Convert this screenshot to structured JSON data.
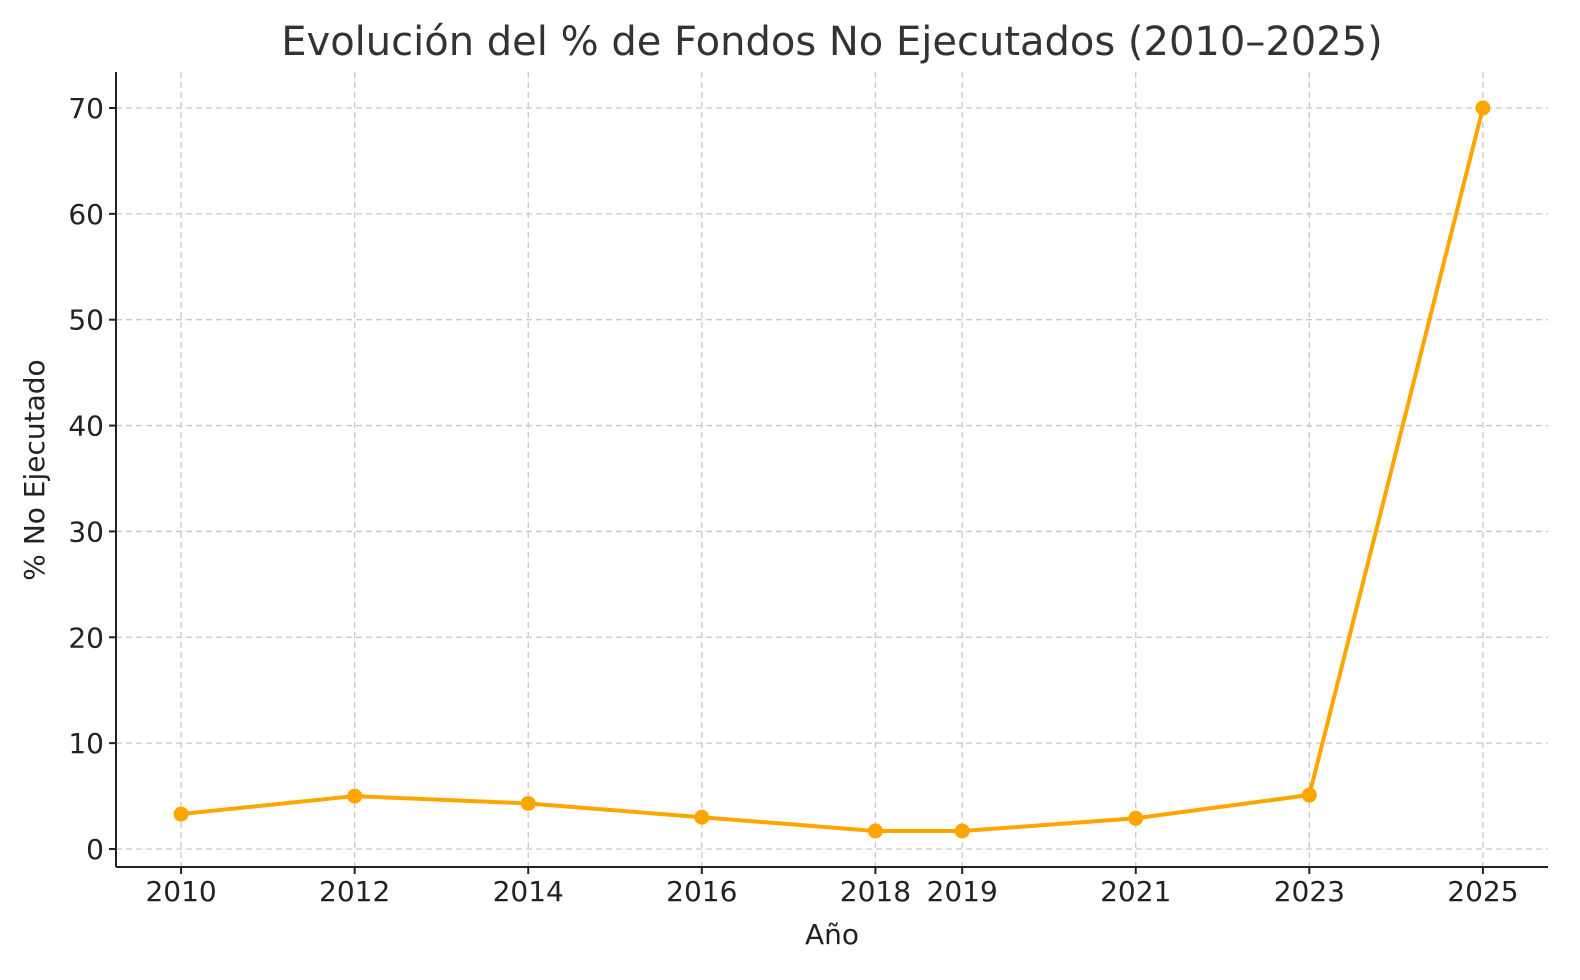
{
  "chart_data": {
    "type": "line",
    "title": "Evolución del % de Fondos No Ejecutados (2010–2025)",
    "xlabel": "Año",
    "ylabel": "% No Ejecutado",
    "x": [
      2010,
      2012,
      2014,
      2016,
      2018,
      2019,
      2021,
      2023,
      2025
    ],
    "x_tick_labels": [
      "2010",
      "2012",
      "2014",
      "2016",
      "2018",
      "2019",
      "2021",
      "2023",
      "2025"
    ],
    "y_ticks": [
      0,
      10,
      20,
      30,
      40,
      50,
      60,
      70
    ],
    "y_tick_labels": [
      "0",
      "10",
      "20",
      "30",
      "40",
      "50",
      "60",
      "70"
    ],
    "xlim": [
      2009.25,
      2025.75
    ],
    "ylim": [
      -1.7,
      73.4
    ],
    "grid": true,
    "series": [
      {
        "values": [
          3.3,
          5.0,
          4.3,
          3.0,
          1.7,
          1.7,
          2.9,
          5.1,
          70.0
        ],
        "color": "#FFA500"
      }
    ]
  }
}
